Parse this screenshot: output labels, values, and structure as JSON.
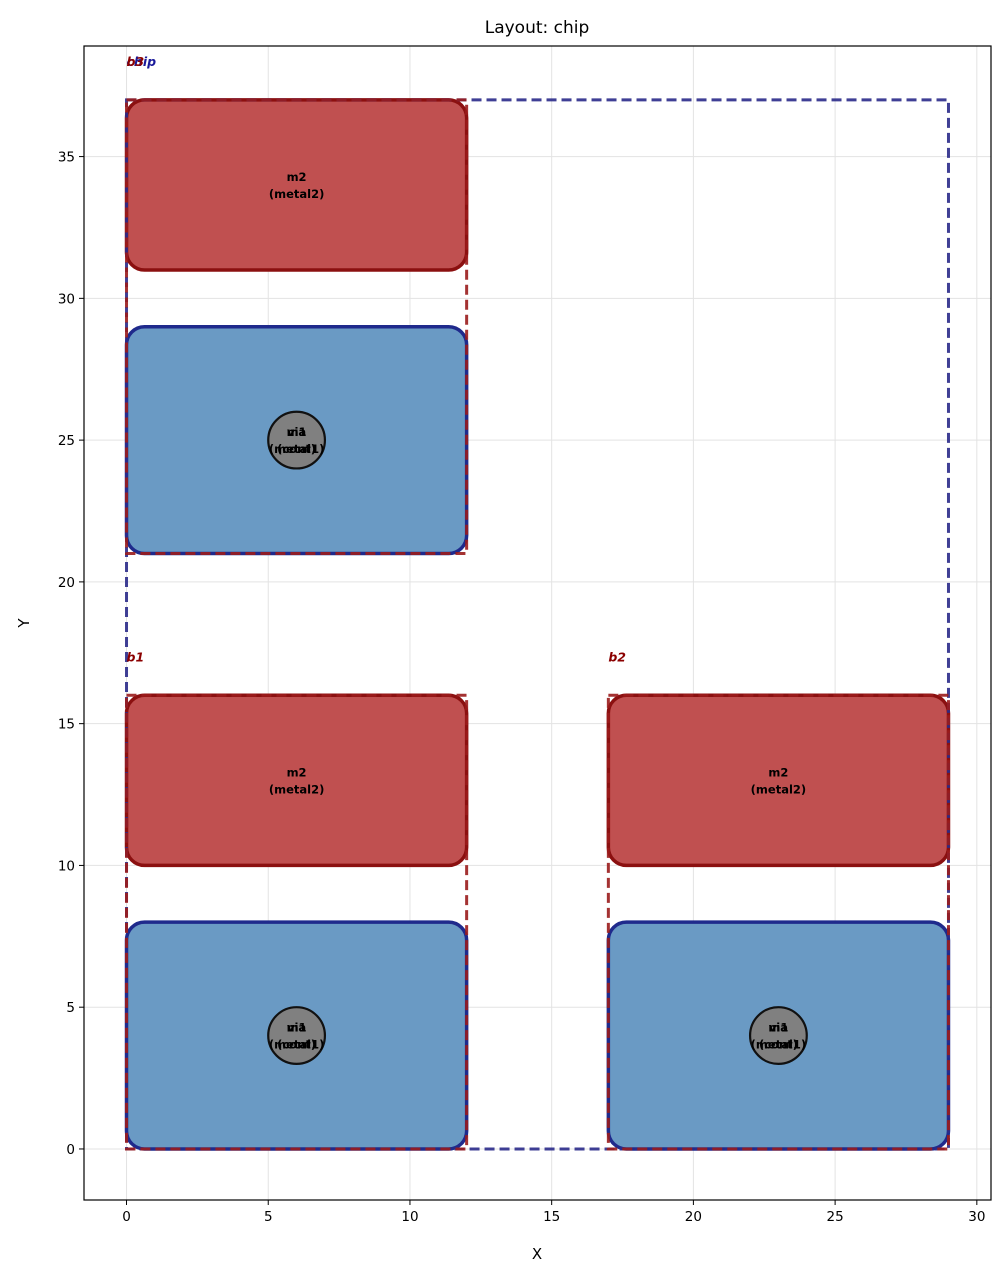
{
  "chart_data": {
    "type": "layout",
    "title": "Layout: chip",
    "xlabel": "X",
    "ylabel": "Y",
    "xlim": [
      -1.5,
      30.5
    ],
    "ylim": [
      -1.8,
      38.9
    ],
    "xticks": [
      0,
      5,
      10,
      15,
      20,
      25,
      30
    ],
    "yticks": [
      0,
      5,
      10,
      15,
      20,
      25,
      30,
      35
    ],
    "grid": true,
    "colors": {
      "metal1_fill": "#6a9ac4",
      "metal1_edge": "#1f2a8c",
      "metal2_fill": "#c05050",
      "metal2_edge": "#8b1010",
      "via_fill": "#808080",
      "via_edge": "#111111",
      "chip_cell_edge": "#2a2a8a",
      "sub_cell_edge": "#9a1c1c",
      "chip_label": "#1a1a9a",
      "sub_label": "#8b0000"
    },
    "cells": [
      {
        "name": "chip",
        "x0": 0,
        "y0": 0,
        "x1": 29,
        "y1": 37,
        "kind": "top"
      },
      {
        "name": "b3",
        "x0": 0,
        "y0": 21,
        "x1": 12,
        "y1": 37,
        "kind": "sub"
      },
      {
        "name": "b1",
        "x0": 0,
        "y0": 0,
        "x1": 12,
        "y1": 16,
        "kind": "sub"
      },
      {
        "name": "b2",
        "x0": 17,
        "y0": 0,
        "x1": 29,
        "y1": 16,
        "kind": "sub"
      }
    ],
    "shapes": [
      {
        "name": "m2",
        "layer": "metal2",
        "x0": 0,
        "y0": 31,
        "x1": 12,
        "y1": 37
      },
      {
        "name": "m1",
        "layer": "metal1",
        "x0": 0,
        "y0": 21,
        "x1": 12,
        "y1": 29
      },
      {
        "name": "m2",
        "layer": "metal2",
        "x0": 0,
        "y0": 10,
        "x1": 12,
        "y1": 16
      },
      {
        "name": "m1",
        "layer": "metal1",
        "x0": 0,
        "y0": 0,
        "x1": 12,
        "y1": 8
      },
      {
        "name": "m2",
        "layer": "metal2",
        "x0": 17,
        "y0": 10,
        "x1": 29,
        "y1": 16
      },
      {
        "name": "m1",
        "layer": "metal1",
        "x0": 17,
        "y0": 0,
        "x1": 29,
        "y1": 8
      }
    ],
    "vias": [
      {
        "name": "via",
        "layer": "cont",
        "x": 6,
        "y": 25,
        "r": 1
      },
      {
        "name": "via",
        "layer": "cont",
        "x": 6,
        "y": 4,
        "r": 1
      },
      {
        "name": "via",
        "layer": "cont",
        "x": 23,
        "y": 4,
        "r": 1
      }
    ],
    "overlapping_labels": [
      {
        "x": 6,
        "y": 25,
        "line1": [
          "m1",
          "via"
        ],
        "line2": [
          "(metal1)",
          "(cont)"
        ]
      },
      {
        "x": 6,
        "y": 4,
        "line1": [
          "m1",
          "via"
        ],
        "line2": [
          "(metal1)",
          "(cont)"
        ]
      },
      {
        "x": 23,
        "y": 4,
        "line1": [
          "m1",
          "via"
        ],
        "line2": [
          "(metal1)",
          "(cont)"
        ]
      }
    ]
  }
}
